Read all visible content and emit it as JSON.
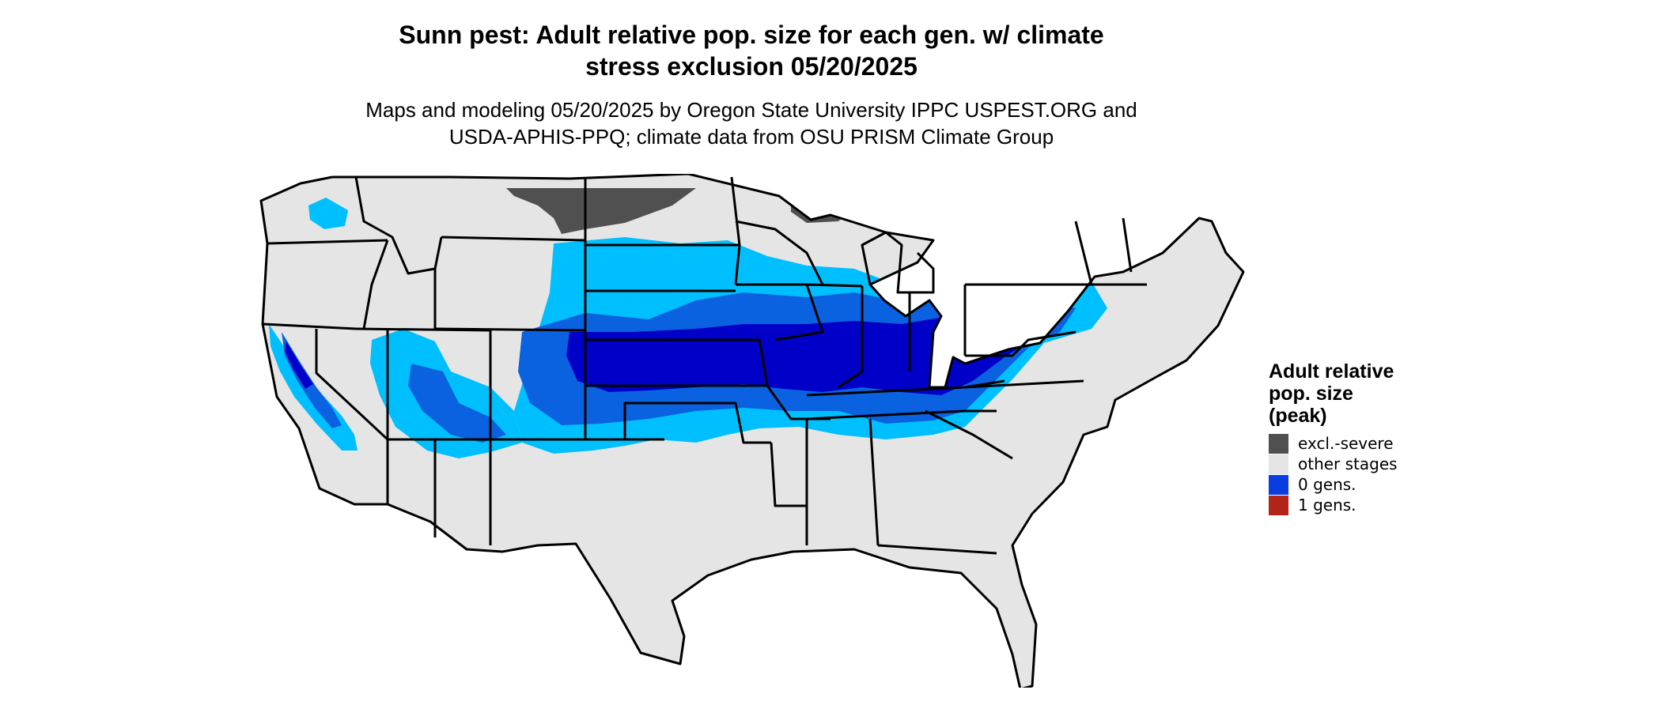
{
  "title_lines": [
    "Sunn pest: Adult relative pop. size for each gen. w/ climate",
    "stress exclusion 05/20/2025"
  ],
  "subtitle_lines": [
    "Maps and modeling 05/20/2025 by Oregon State University IPPC USPEST.ORG and",
    "USDA-APHIS-PPQ; climate data from OSU PRISM Climate Group"
  ],
  "legend": {
    "title_lines": [
      "Adult relative",
      "pop. size",
      "(peak)"
    ],
    "items": [
      {
        "label": "excl.-severe",
        "color": "#505050"
      },
      {
        "label": "other stages",
        "color": "#e5e5e5"
      },
      {
        "label": "0 gens.",
        "color": "#0a3de0"
      },
      {
        "label": "1 gens.",
        "color": "#b22418"
      }
    ]
  },
  "colors": {
    "land": "#e5e5e5",
    "borders": "#000000",
    "light_blue": "#00bfff",
    "mid_blue": "#0b62e0",
    "dark_blue": "#0000c8",
    "excluded": "#505050"
  }
}
